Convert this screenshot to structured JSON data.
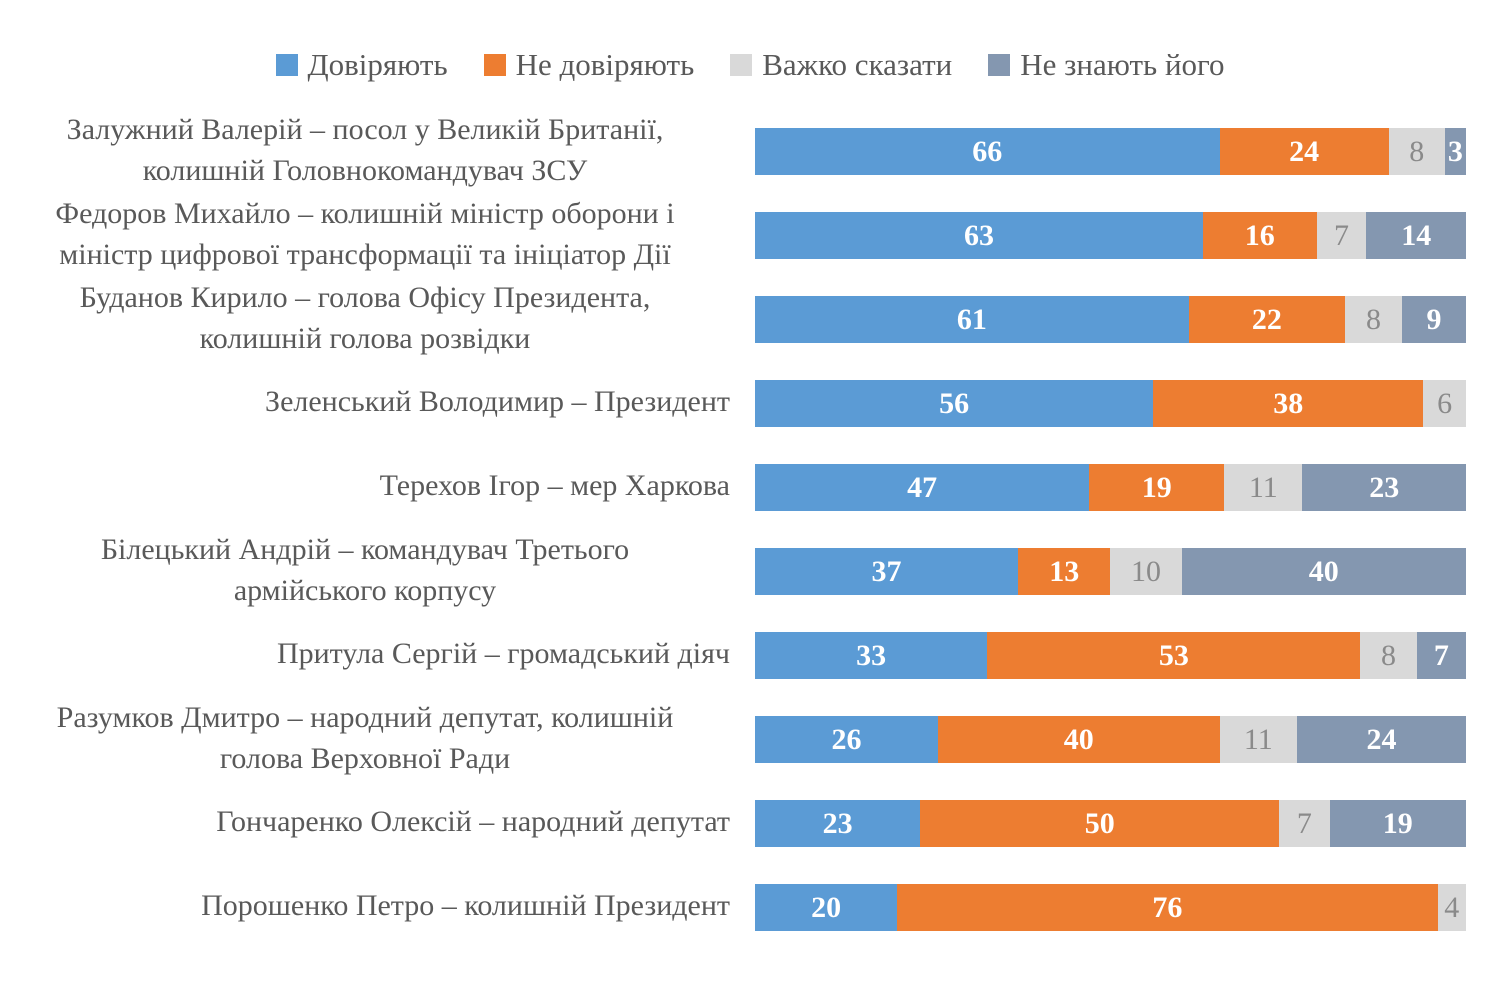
{
  "chart_data": {
    "type": "bar",
    "orientation": "horizontal",
    "stacked": true,
    "legend_position": "top",
    "grid": false,
    "xlim": [
      0,
      100
    ],
    "series": [
      {
        "name": "Довіряють",
        "color": "#5b9bd5"
      },
      {
        "name": "Не довіряють",
        "color": "#ed7d31"
      },
      {
        "name": "Важко сказати",
        "color": "#d9d9d9"
      },
      {
        "name": "Не знають його",
        "color": "#8497b0"
      }
    ],
    "rows": [
      {
        "label_lines": [
          "Залужний Валерій – посол у Великій Британії,",
          "колишній Головнокомандувач ЗСУ"
        ],
        "values": [
          66,
          24,
          8,
          3
        ]
      },
      {
        "label_lines": [
          "Федоров Михайло – колишній міністр оборони і",
          "міністр цифрової трансформації та ініціатор Дії"
        ],
        "values": [
          63,
          16,
          7,
          14
        ]
      },
      {
        "label_lines": [
          "Буданов Кирило – голова Офісу Президента,",
          "колишній голова розвідки"
        ],
        "values": [
          61,
          22,
          8,
          9
        ]
      },
      {
        "label_lines": [
          "Зеленський Володимир – Президент"
        ],
        "values": [
          56,
          38,
          6,
          0
        ]
      },
      {
        "label_lines": [
          "Терехов Ігор – мер Харкова"
        ],
        "values": [
          47,
          19,
          11,
          23
        ]
      },
      {
        "label_lines": [
          "Білецький Андрій – командувач Третього",
          "армійського корпусу"
        ],
        "values": [
          37,
          13,
          10,
          40
        ]
      },
      {
        "label_lines": [
          "Притула Сергій – громадський діяч"
        ],
        "values": [
          33,
          53,
          8,
          7
        ]
      },
      {
        "label_lines": [
          "Разумков Дмитро – народний депутат, колишній",
          "голова Верховної Ради"
        ],
        "values": [
          26,
          40,
          11,
          24
        ]
      },
      {
        "label_lines": [
          "Гончаренко Олексій – народний депутат"
        ],
        "values": [
          23,
          50,
          7,
          19
        ]
      },
      {
        "label_lines": [
          "Порошенко Петро – колишній Президент"
        ],
        "values": [
          20,
          76,
          4,
          0
        ]
      }
    ]
  }
}
